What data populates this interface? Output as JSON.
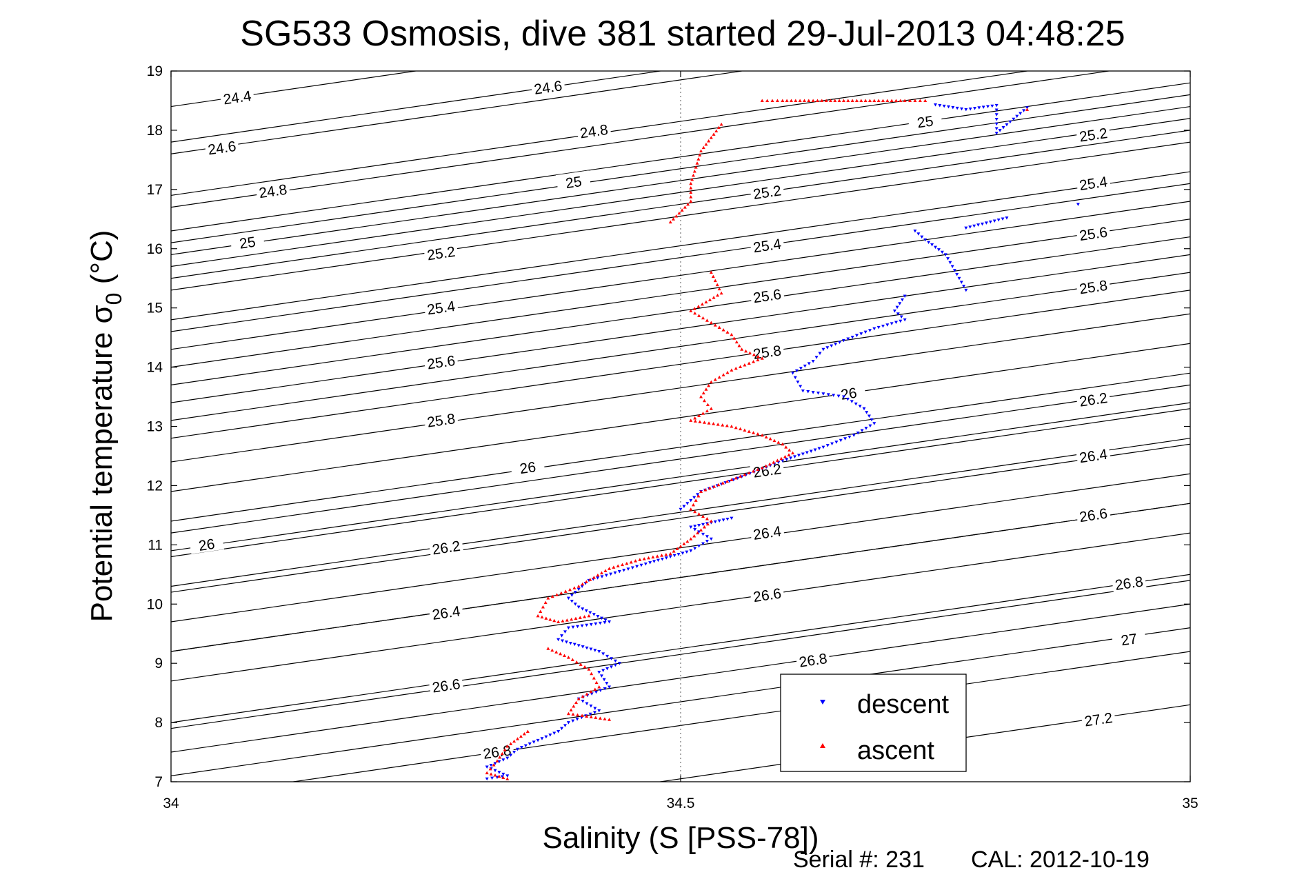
{
  "chart_data": {
    "type": "scatter",
    "title": "SG533 Osmosis, dive 381 started 29-Jul-2013 04:48:25",
    "xlabel": "Salinity (S [PSS-78])",
    "ylabel_main": "Potential temperature σ",
    "ylabel_sub": "0",
    "ylabel_unit": " (°C)",
    "xlim": [
      34,
      35
    ],
    "ylim": [
      7,
      19
    ],
    "xticks": [
      "34",
      "34.5",
      "35"
    ],
    "yticks": [
      "7",
      "8",
      "9",
      "10",
      "11",
      "12",
      "13",
      "14",
      "15",
      "16",
      "17",
      "18",
      "19"
    ],
    "grid": "x=34.5 dotted",
    "legend": {
      "position": "bottom-right"
    },
    "series": [
      {
        "name": "descent",
        "color": "#0000ff",
        "marker": "triangle-down",
        "points": [
          [
            34.75,
            18.43
          ],
          [
            34.78,
            18.35
          ],
          [
            34.81,
            18.42
          ],
          [
            34.81,
            17.95
          ],
          [
            34.84,
            18.38
          ],
          [
            34.89,
            16.75
          ],
          [
            34.82,
            16.52
          ],
          [
            34.78,
            16.35
          ],
          [
            34.73,
            16.3
          ],
          [
            34.74,
            16.15
          ],
          [
            34.76,
            15.9
          ],
          [
            34.78,
            15.3
          ],
          [
            34.72,
            15.2
          ],
          [
            34.71,
            14.95
          ],
          [
            34.72,
            14.8
          ],
          [
            34.69,
            14.65
          ],
          [
            34.66,
            14.45
          ],
          [
            34.64,
            14.3
          ],
          [
            34.63,
            14.1
          ],
          [
            34.61,
            13.9
          ],
          [
            34.62,
            13.6
          ],
          [
            34.64,
            13.55
          ],
          [
            34.66,
            13.5
          ],
          [
            34.68,
            13.3
          ],
          [
            34.69,
            13.05
          ],
          [
            34.67,
            12.85
          ],
          [
            34.64,
            12.65
          ],
          [
            34.6,
            12.42
          ],
          [
            34.56,
            12.15
          ],
          [
            34.52,
            11.9
          ],
          [
            34.5,
            11.6
          ],
          [
            34.55,
            11.45
          ],
          [
            34.51,
            11.3
          ],
          [
            34.53,
            11.1
          ],
          [
            34.51,
            10.9
          ],
          [
            34.47,
            10.7
          ],
          [
            34.44,
            10.55
          ],
          [
            34.41,
            10.4
          ],
          [
            34.39,
            10.1
          ],
          [
            34.4,
            9.95
          ],
          [
            34.43,
            9.7
          ],
          [
            34.39,
            9.6
          ],
          [
            34.38,
            9.4
          ],
          [
            34.42,
            9.2
          ],
          [
            34.44,
            9.0
          ],
          [
            34.42,
            8.85
          ],
          [
            34.43,
            8.6
          ],
          [
            34.4,
            8.4
          ],
          [
            34.42,
            8.2
          ],
          [
            34.39,
            8.0
          ],
          [
            34.38,
            7.85
          ],
          [
            34.36,
            7.7
          ],
          [
            34.34,
            7.55
          ],
          [
            34.33,
            7.4
          ],
          [
            34.31,
            7.25
          ],
          [
            34.33,
            7.1
          ],
          [
            34.31,
            7.05
          ]
        ]
      },
      {
        "name": "ascent",
        "color": "#ff0000",
        "marker": "triangle-up",
        "points": [
          [
            34.58,
            18.5
          ],
          [
            34.6,
            18.5
          ],
          [
            34.63,
            18.5
          ],
          [
            34.66,
            18.5
          ],
          [
            34.69,
            18.5
          ],
          [
            34.72,
            18.5
          ],
          [
            34.74,
            18.5
          ],
          [
            34.84,
            18.35
          ],
          [
            34.54,
            18.1
          ],
          [
            34.52,
            17.65
          ],
          [
            34.51,
            17.1
          ],
          [
            34.51,
            16.8
          ],
          [
            34.49,
            16.45
          ],
          [
            34.53,
            15.6
          ],
          [
            34.54,
            15.25
          ],
          [
            34.51,
            14.95
          ],
          [
            34.53,
            14.75
          ],
          [
            34.55,
            14.55
          ],
          [
            34.56,
            14.3
          ],
          [
            34.58,
            14.15
          ],
          [
            34.55,
            13.95
          ],
          [
            34.53,
            13.75
          ],
          [
            34.52,
            13.5
          ],
          [
            34.53,
            13.3
          ],
          [
            34.51,
            13.1
          ],
          [
            34.55,
            13.0
          ],
          [
            34.58,
            12.85
          ],
          [
            34.6,
            12.7
          ],
          [
            34.61,
            12.55
          ],
          [
            34.58,
            12.3
          ],
          [
            34.55,
            12.1
          ],
          [
            34.52,
            11.9
          ],
          [
            34.51,
            11.6
          ],
          [
            34.53,
            11.4
          ],
          [
            34.51,
            11.1
          ],
          [
            34.49,
            10.85
          ],
          [
            34.46,
            10.75
          ],
          [
            34.43,
            10.6
          ],
          [
            34.4,
            10.3
          ],
          [
            34.37,
            10.1
          ],
          [
            34.36,
            9.8
          ],
          [
            34.38,
            9.7
          ],
          [
            34.41,
            9.8
          ],
          [
            34.37,
            9.25
          ],
          [
            34.39,
            9.1
          ],
          [
            34.41,
            8.9
          ],
          [
            34.42,
            8.6
          ],
          [
            34.4,
            8.4
          ],
          [
            34.39,
            8.15
          ],
          [
            34.43,
            8.05
          ],
          [
            34.35,
            7.85
          ],
          [
            34.33,
            7.6
          ],
          [
            34.32,
            7.35
          ],
          [
            34.31,
            7.15
          ],
          [
            34.33,
            7.05
          ]
        ]
      }
    ],
    "density_contours": [
      {
        "label": "24.4",
        "label_pos": [
          34.065,
          18.55
        ]
      },
      {
        "label": "24.6",
        "label_pos": [
          34.37,
          18.72
        ]
      },
      {
        "label": "24.6",
        "label_pos": [
          34.05,
          17.7
        ]
      },
      {
        "label": "24.8",
        "label_pos": [
          34.415,
          17.98
        ]
      },
      {
        "label": "24.8",
        "label_pos": [
          34.1,
          16.97
        ]
      },
      {
        "label": "25",
        "label_pos": [
          34.395,
          17.12
        ]
      },
      {
        "label": "25",
        "label_pos": [
          34.74,
          18.14
        ]
      },
      {
        "label": "25",
        "label_pos": [
          34.075,
          16.1
        ]
      },
      {
        "label": "25.2",
        "label_pos": [
          34.265,
          15.92
        ]
      },
      {
        "label": "25.2",
        "label_pos": [
          34.585,
          16.95
        ]
      },
      {
        "label": "25.2",
        "label_pos": [
          34.905,
          17.92
        ]
      },
      {
        "label": "25.4",
        "label_pos": [
          34.265,
          15.0
        ]
      },
      {
        "label": "25.4",
        "label_pos": [
          34.585,
          16.05
        ]
      },
      {
        "label": "25.4",
        "label_pos": [
          34.905,
          17.1
        ]
      },
      {
        "label": "25.6",
        "label_pos": [
          34.265,
          14.08
        ]
      },
      {
        "label": "25.6",
        "label_pos": [
          34.585,
          15.2
        ]
      },
      {
        "label": "25.6",
        "label_pos": [
          34.905,
          16.25
        ]
      },
      {
        "label": "25.8",
        "label_pos": [
          34.265,
          13.1
        ]
      },
      {
        "label": "25.8",
        "label_pos": [
          34.585,
          14.25
        ]
      },
      {
        "label": "25.8",
        "label_pos": [
          34.905,
          15.35
        ]
      },
      {
        "label": "26",
        "label_pos": [
          34.035,
          11.0
        ]
      },
      {
        "label": "26",
        "label_pos": [
          34.35,
          12.3
        ]
      },
      {
        "label": "26",
        "label_pos": [
          34.665,
          13.55
        ]
      },
      {
        "label": "26.2",
        "label_pos": [
          34.27,
          10.95
        ]
      },
      {
        "label": "26.2",
        "label_pos": [
          34.585,
          12.25
        ]
      },
      {
        "label": "26.2",
        "label_pos": [
          34.905,
          13.45
        ]
      },
      {
        "label": "26.4",
        "label_pos": [
          34.27,
          9.85
        ]
      },
      {
        "label": "26.4",
        "label_pos": [
          34.585,
          11.2
        ]
      },
      {
        "label": "26.4",
        "label_pos": [
          34.905,
          12.5
        ]
      },
      {
        "label": "26.6",
        "label_pos": [
          34.27,
          8.62
        ]
      },
      {
        "label": "26.6",
        "label_pos": [
          34.585,
          10.15
        ]
      },
      {
        "label": "26.6",
        "label_pos": [
          34.905,
          11.5
        ]
      },
      {
        "label": "26.8",
        "label_pos": [
          34.32,
          7.5
        ]
      },
      {
        "label": "26.8",
        "label_pos": [
          34.63,
          9.05
        ]
      },
      {
        "label": "26.8",
        "label_pos": [
          34.94,
          10.35
        ]
      },
      {
        "label": "27",
        "label_pos": [
          34.94,
          9.4
        ]
      },
      {
        "label": "27.2",
        "label_pos": [
          34.91,
          8.05
        ]
      }
    ]
  },
  "footer": {
    "serial": "Serial #: 231",
    "cal": "CAL: 2012-10-19"
  }
}
